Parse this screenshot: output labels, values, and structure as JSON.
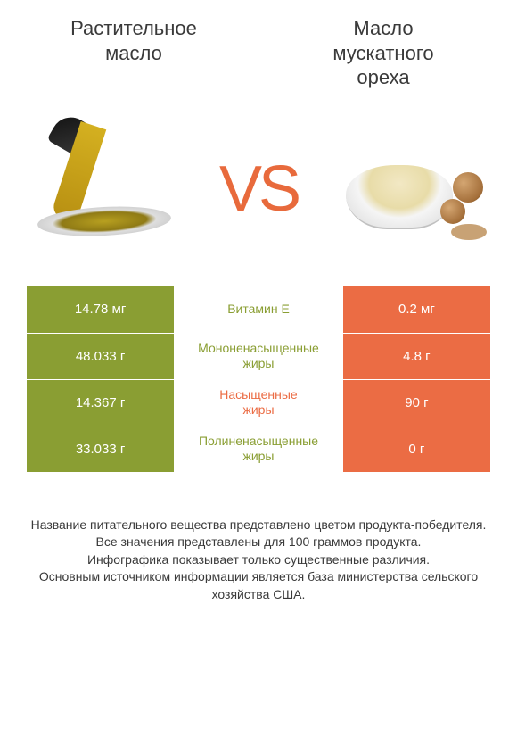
{
  "colors": {
    "left": "#8a9e33",
    "right": "#eb6c44",
    "text_dark": "#3a3a3a",
    "text_light": "#ffffff",
    "vs": "#e86a3c",
    "label_green": "#8a9e33",
    "label_orange": "#eb6c44"
  },
  "header": {
    "left_title_line1": "Растительное",
    "left_title_line2": "масло",
    "right_title_line1": "Масло",
    "right_title_line2": "мускатного",
    "right_title_line3": "ореха"
  },
  "vs_text": "VS",
  "rows": [
    {
      "left_value": "14.78 мг",
      "label": "Витамин E",
      "right_value": "0.2 мг",
      "winner": "left"
    },
    {
      "left_value": "48.033 г",
      "label": "Мононенасыщенные\nжиры",
      "right_value": "4.8 г",
      "winner": "left"
    },
    {
      "left_value": "14.367 г",
      "label": "Насыщенные\nжиры",
      "right_value": "90 г",
      "winner": "right"
    },
    {
      "left_value": "33.033 г",
      "label": "Полиненасыщенные\nжиры",
      "right_value": "0 г",
      "winner": "left"
    }
  ],
  "footnotes": [
    "Название питательного вещества представлено цветом продукта-победителя.",
    "Все значения представлены для 100 граммов продукта.",
    "Инфографика показывает только существенные различия.",
    "Основным источником информации является база министерства сельского хозяйства США."
  ]
}
